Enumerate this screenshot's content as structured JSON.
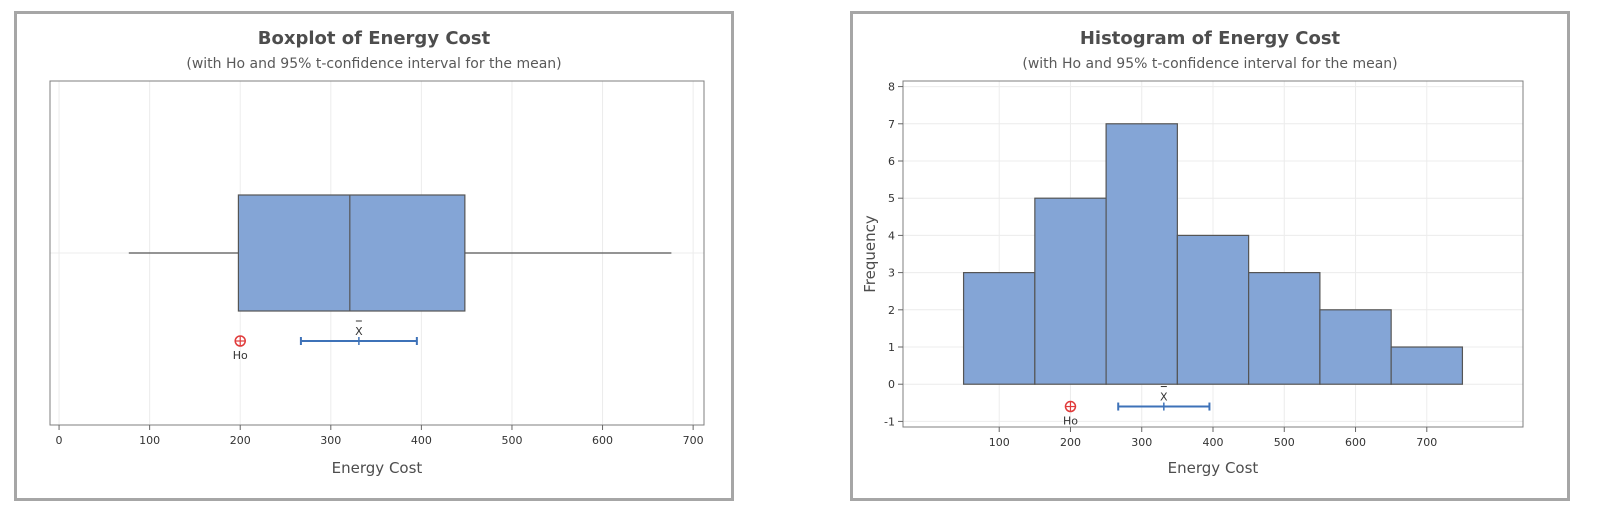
{
  "chart_data": [
    {
      "type": "boxplot",
      "title": "Boxplot of Energy Cost",
      "subtitle": "(with Ho and 95% t-confidence interval for the mean)",
      "xlabel": "Energy Cost",
      "xlim": [
        -10,
        712
      ],
      "xticks": [
        0,
        100,
        200,
        300,
        400,
        500,
        600,
        700
      ],
      "box": {
        "whisker_low": 77,
        "q1": 198,
        "median": 321,
        "q3": 448,
        "whisker_high": 676
      },
      "mean": 331,
      "ci": [
        267,
        395
      ],
      "h0": 200,
      "mean_label": "X",
      "h0_label": "Ho",
      "grid": true,
      "colors": {
        "fill": "#84a5d6",
        "ci": "#3e72b8",
        "h0": "#e03b3b"
      }
    },
    {
      "type": "histogram",
      "title": "Histogram of Energy Cost",
      "subtitle": "(with Ho and 95% t-confidence interval for the mean)",
      "xlabel": "Energy Cost",
      "ylabel": "Frequency",
      "xlim": [
        -35,
        835
      ],
      "ylim": [
        -1.15,
        8.15
      ],
      "xticks": [
        100,
        200,
        300,
        400,
        500,
        600,
        700
      ],
      "yticks": [
        -1,
        0,
        1,
        2,
        3,
        4,
        5,
        6,
        7,
        8
      ],
      "bins": [
        {
          "start": 50,
          "end": 150,
          "count": 3
        },
        {
          "start": 150,
          "end": 250,
          "count": 5
        },
        {
          "start": 250,
          "end": 350,
          "count": 7
        },
        {
          "start": 350,
          "end": 450,
          "count": 4
        },
        {
          "start": 450,
          "end": 550,
          "count": 3
        },
        {
          "start": 550,
          "end": 650,
          "count": 2
        },
        {
          "start": 650,
          "end": 750,
          "count": 1
        }
      ],
      "mean": 331,
      "ci": [
        267,
        395
      ],
      "h0": 200,
      "marker_y": -0.6,
      "mean_label": "X",
      "h0_label": "Ho",
      "grid": true,
      "colors": {
        "fill": "#84a5d6",
        "ci": "#3e72b8",
        "h0": "#e03b3b"
      }
    }
  ]
}
